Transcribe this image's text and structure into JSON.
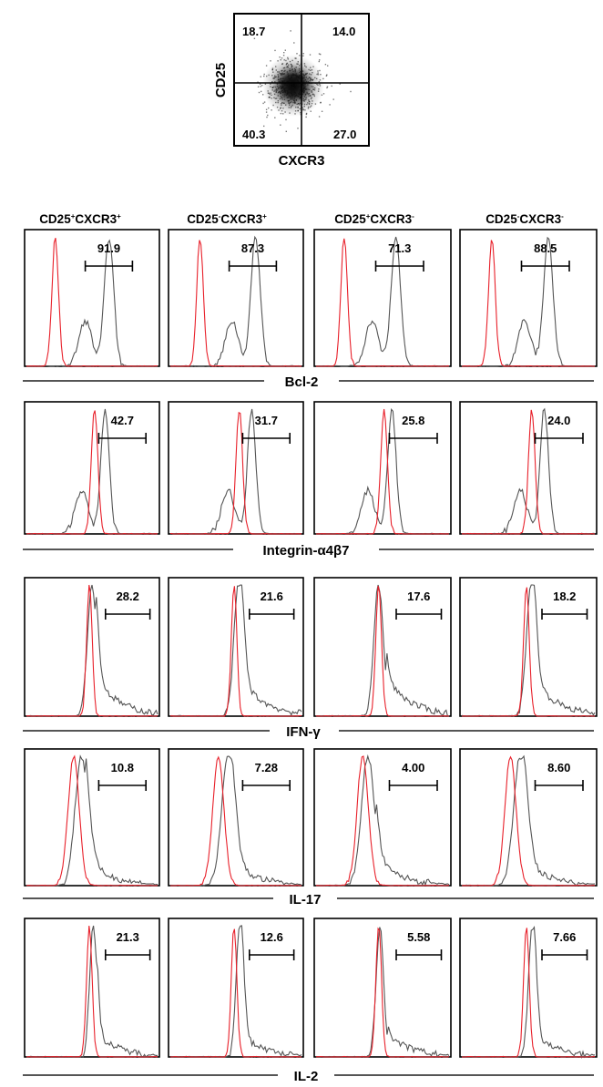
{
  "scatter": {
    "ylabel": "CD25",
    "xlabel": "CXCR3",
    "quadrants": {
      "top_left": "18.7",
      "top_right": "14.0",
      "bottom_left": "40.3",
      "bottom_right": "27.0"
    }
  },
  "column_headers": [
    {
      "base": "CD25",
      "sup1": "+",
      "mid": "CXCR3",
      "sup2": "+"
    },
    {
      "base": "CD25",
      "sup1": "-",
      "mid": "CXCR3",
      "sup2": "+"
    },
    {
      "base": "CD25",
      "sup1": "+",
      "mid": "CXCR3",
      "sup2": "-"
    },
    {
      "base": "CD25",
      "sup1": "-",
      "mid": "CXCR3",
      "sup2": "-"
    }
  ],
  "colors": {
    "control": "#e8202a",
    "sample": "#555555",
    "frame": "#000000"
  },
  "chart_data": {
    "type": "histogram-grid",
    "rows": [
      {
        "marker": "Bcl-2",
        "values": [
          "91.9",
          "87.3",
          "71.3",
          "88.5"
        ]
      },
      {
        "marker": "Integrin-α4β7",
        "values": [
          "42.7",
          "31.7",
          "25.8",
          "24.0"
        ]
      },
      {
        "marker": "IFN-γ",
        "values": [
          "28.2",
          "21.6",
          "17.6",
          "18.2"
        ]
      },
      {
        "marker": "IL-17",
        "values": [
          "10.8",
          "7.28",
          "4.00",
          "8.60"
        ]
      },
      {
        "marker": "IL-2",
        "values": [
          "21.3",
          "12.6",
          "5.58",
          "7.66"
        ]
      }
    ]
  }
}
